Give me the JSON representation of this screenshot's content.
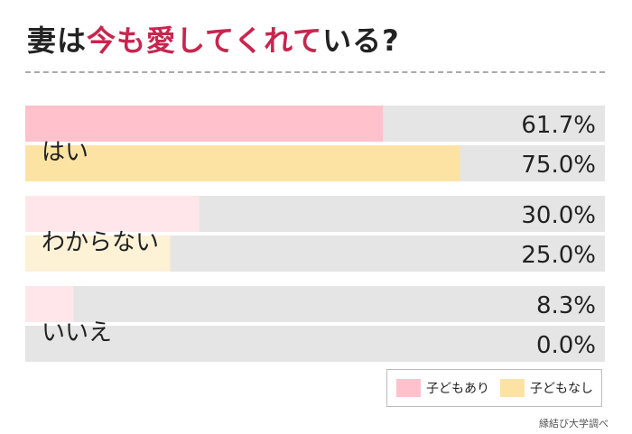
{
  "title": {
    "before": "妻は",
    "highlight": "今も愛してくれて",
    "after": "いる?"
  },
  "legend": {
    "with_children": "子どもあり",
    "without_children": "子どもなし"
  },
  "source": "縁結び大学調べ",
  "colors": {
    "with_children": "#ffc1cc",
    "with_children_light": "#ffe6ea",
    "without_children": "#fce3a4",
    "without_children_light": "#fdf1d6",
    "track": "#e5e5e5",
    "title_highlight": "#c8254f"
  },
  "chart_data": {
    "type": "bar",
    "orientation": "horizontal",
    "categories": [
      "はい",
      "わからない",
      "いいえ"
    ],
    "series": [
      {
        "name": "子どもあり",
        "values": [
          61.7,
          30.0,
          8.3
        ]
      },
      {
        "name": "子どもなし",
        "values": [
          75.0,
          25.0,
          0.0
        ]
      }
    ],
    "value_labels": [
      [
        "61.7%",
        "75.0%"
      ],
      [
        "30.0%",
        "25.0%"
      ],
      [
        "8.3%",
        "0.0%"
      ]
    ],
    "xlim": [
      0,
      100
    ],
    "legend_position": "bottom-right"
  }
}
